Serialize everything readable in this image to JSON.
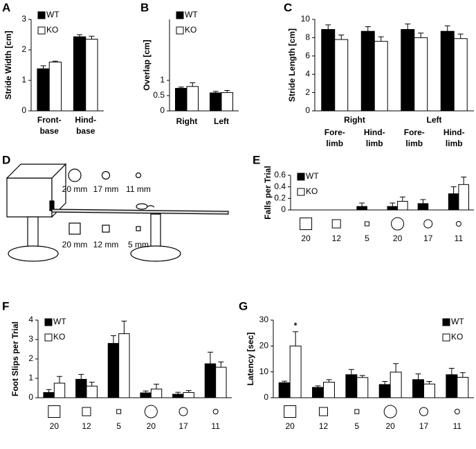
{
  "chart_data": [
    {
      "type": "bar",
      "panel_label": "A",
      "y_label": "Stride Width [cm]",
      "categories": [
        [
          "Front-",
          "base"
        ],
        [
          "Hind-",
          "base"
        ]
      ],
      "series": [
        {
          "name": "WT",
          "color": "#000000",
          "values": [
            1.38,
            2.43
          ],
          "errors": [
            0.1,
            0.07
          ]
        },
        {
          "name": "KO",
          "color": "#ffffff",
          "values": [
            1.6,
            2.35
          ],
          "errors": [
            0.03,
            0.1
          ]
        }
      ],
      "ylim": [
        0,
        3
      ],
      "yticks": [
        0,
        1,
        2,
        3
      ],
      "legend": "upper-left"
    },
    {
      "type": "bar",
      "panel_label": "B",
      "y_label": "Overlap [cm]",
      "categories": [
        "Right",
        "Left"
      ],
      "series": [
        {
          "name": "WT",
          "color": "#000000",
          "values": [
            0.74,
            0.59
          ],
          "errors": [
            0.04,
            0.05
          ]
        },
        {
          "name": "KO",
          "color": "#ffffff",
          "values": [
            0.8,
            0.6
          ],
          "errors": [
            0.12,
            0.07
          ]
        }
      ],
      "ylim": [
        0,
        3
      ],
      "yticks": [
        0,
        0.5,
        1
      ],
      "legend": "upper-left"
    },
    {
      "type": "bar",
      "panel_label": "C",
      "y_label": "Stride Length [cm]",
      "groups": [
        "Right",
        "Left"
      ],
      "categories": [
        [
          "Fore-",
          "limb"
        ],
        [
          "Hind-",
          "limb"
        ],
        [
          "Fore-",
          "limb"
        ],
        [
          "Hind-",
          "limb"
        ]
      ],
      "series": [
        {
          "name": null,
          "color": "#000000",
          "values": [
            8.9,
            8.7,
            8.9,
            8.7
          ],
          "errors": [
            0.5,
            0.5,
            0.6,
            0.6
          ]
        },
        {
          "name": null,
          "color": "#ffffff",
          "values": [
            7.8,
            7.6,
            8.0,
            7.9
          ],
          "errors": [
            0.5,
            0.5,
            0.5,
            0.5
          ]
        }
      ],
      "ylim": [
        0,
        10
      ],
      "yticks": [
        0,
        2,
        4,
        6,
        8,
        10
      ]
    },
    {
      "type": "bar",
      "panel_label": "E",
      "y_label": "Falls per Trial",
      "categories": [
        "20",
        "12",
        "5",
        "20",
        "17",
        "11"
      ],
      "shapes": [
        "square",
        "square",
        "square",
        "circle",
        "circle",
        "circle"
      ],
      "series": [
        {
          "name": "WT",
          "color": "#000000",
          "values": [
            0,
            0,
            0.06,
            0.06,
            0.11,
            0.28
          ],
          "errors": [
            null,
            null,
            0.06,
            0.06,
            0.07,
            0.12
          ]
        },
        {
          "name": "KO",
          "color": "#ffffff",
          "values": [
            0,
            0,
            0,
            0.15,
            0,
            0.44
          ],
          "errors": [
            null,
            null,
            null,
            0.075,
            null,
            0.13
          ]
        }
      ],
      "ylim": [
        0,
        0.6
      ],
      "yticks": [
        0,
        0.2,
        0.4,
        0.6
      ],
      "legend": "upper-left"
    },
    {
      "type": "bar",
      "panel_label": "F",
      "y_label": "Foot Slips per Trial",
      "categories": [
        "20",
        "12",
        "5",
        "20",
        "17",
        "11"
      ],
      "shapes": [
        "square",
        "square",
        "square",
        "circle",
        "circle",
        "circle"
      ],
      "series": [
        {
          "name": "WT",
          "color": "#000000",
          "values": [
            0.27,
            0.95,
            2.8,
            0.25,
            0.18,
            1.75
          ],
          "errors": [
            0.15,
            0.25,
            0.4,
            0.1,
            0.1,
            0.6
          ]
        },
        {
          "name": "KO",
          "color": "#ffffff",
          "values": [
            0.75,
            0.6,
            3.3,
            0.45,
            0.27,
            1.57
          ],
          "errors": [
            0.35,
            0.2,
            0.65,
            0.25,
            0.1,
            0.28
          ]
        }
      ],
      "ylim": [
        0,
        4
      ],
      "yticks": [
        0,
        1,
        2,
        3,
        4
      ],
      "legend": "upper-left"
    },
    {
      "type": "bar",
      "panel_label": "G",
      "y_label": "Latency [sec]",
      "categories": [
        "20",
        "12",
        "5",
        "20",
        "17",
        "11"
      ],
      "shapes": [
        "square",
        "square",
        "square",
        "circle",
        "circle",
        "circle"
      ],
      "series": [
        {
          "name": "WT",
          "color": "#000000",
          "values": [
            5.8,
            4.0,
            8.9,
            5.1,
            7.0,
            8.9
          ],
          "errors": [
            0.6,
            0.6,
            2,
            1.2,
            2.2,
            2.5
          ]
        },
        {
          "name": "KO",
          "color": "#ffffff",
          "values": [
            20,
            6.0,
            7.8,
            9.9,
            5.3,
            7.9
          ],
          "errors": [
            5.5,
            1,
            0.8,
            3.3,
            1,
            1.8
          ]
        }
      ],
      "ylim": [
        0,
        30
      ],
      "yticks": [
        0,
        10,
        20,
        30
      ],
      "legend": "upper-right",
      "annotation": "*"
    }
  ],
  "diagram": {
    "panel_label": "D",
    "labels": [
      "20 mm",
      "17 mm",
      "11 mm",
      "20 mm",
      "12 mm",
      "5 mm"
    ]
  }
}
